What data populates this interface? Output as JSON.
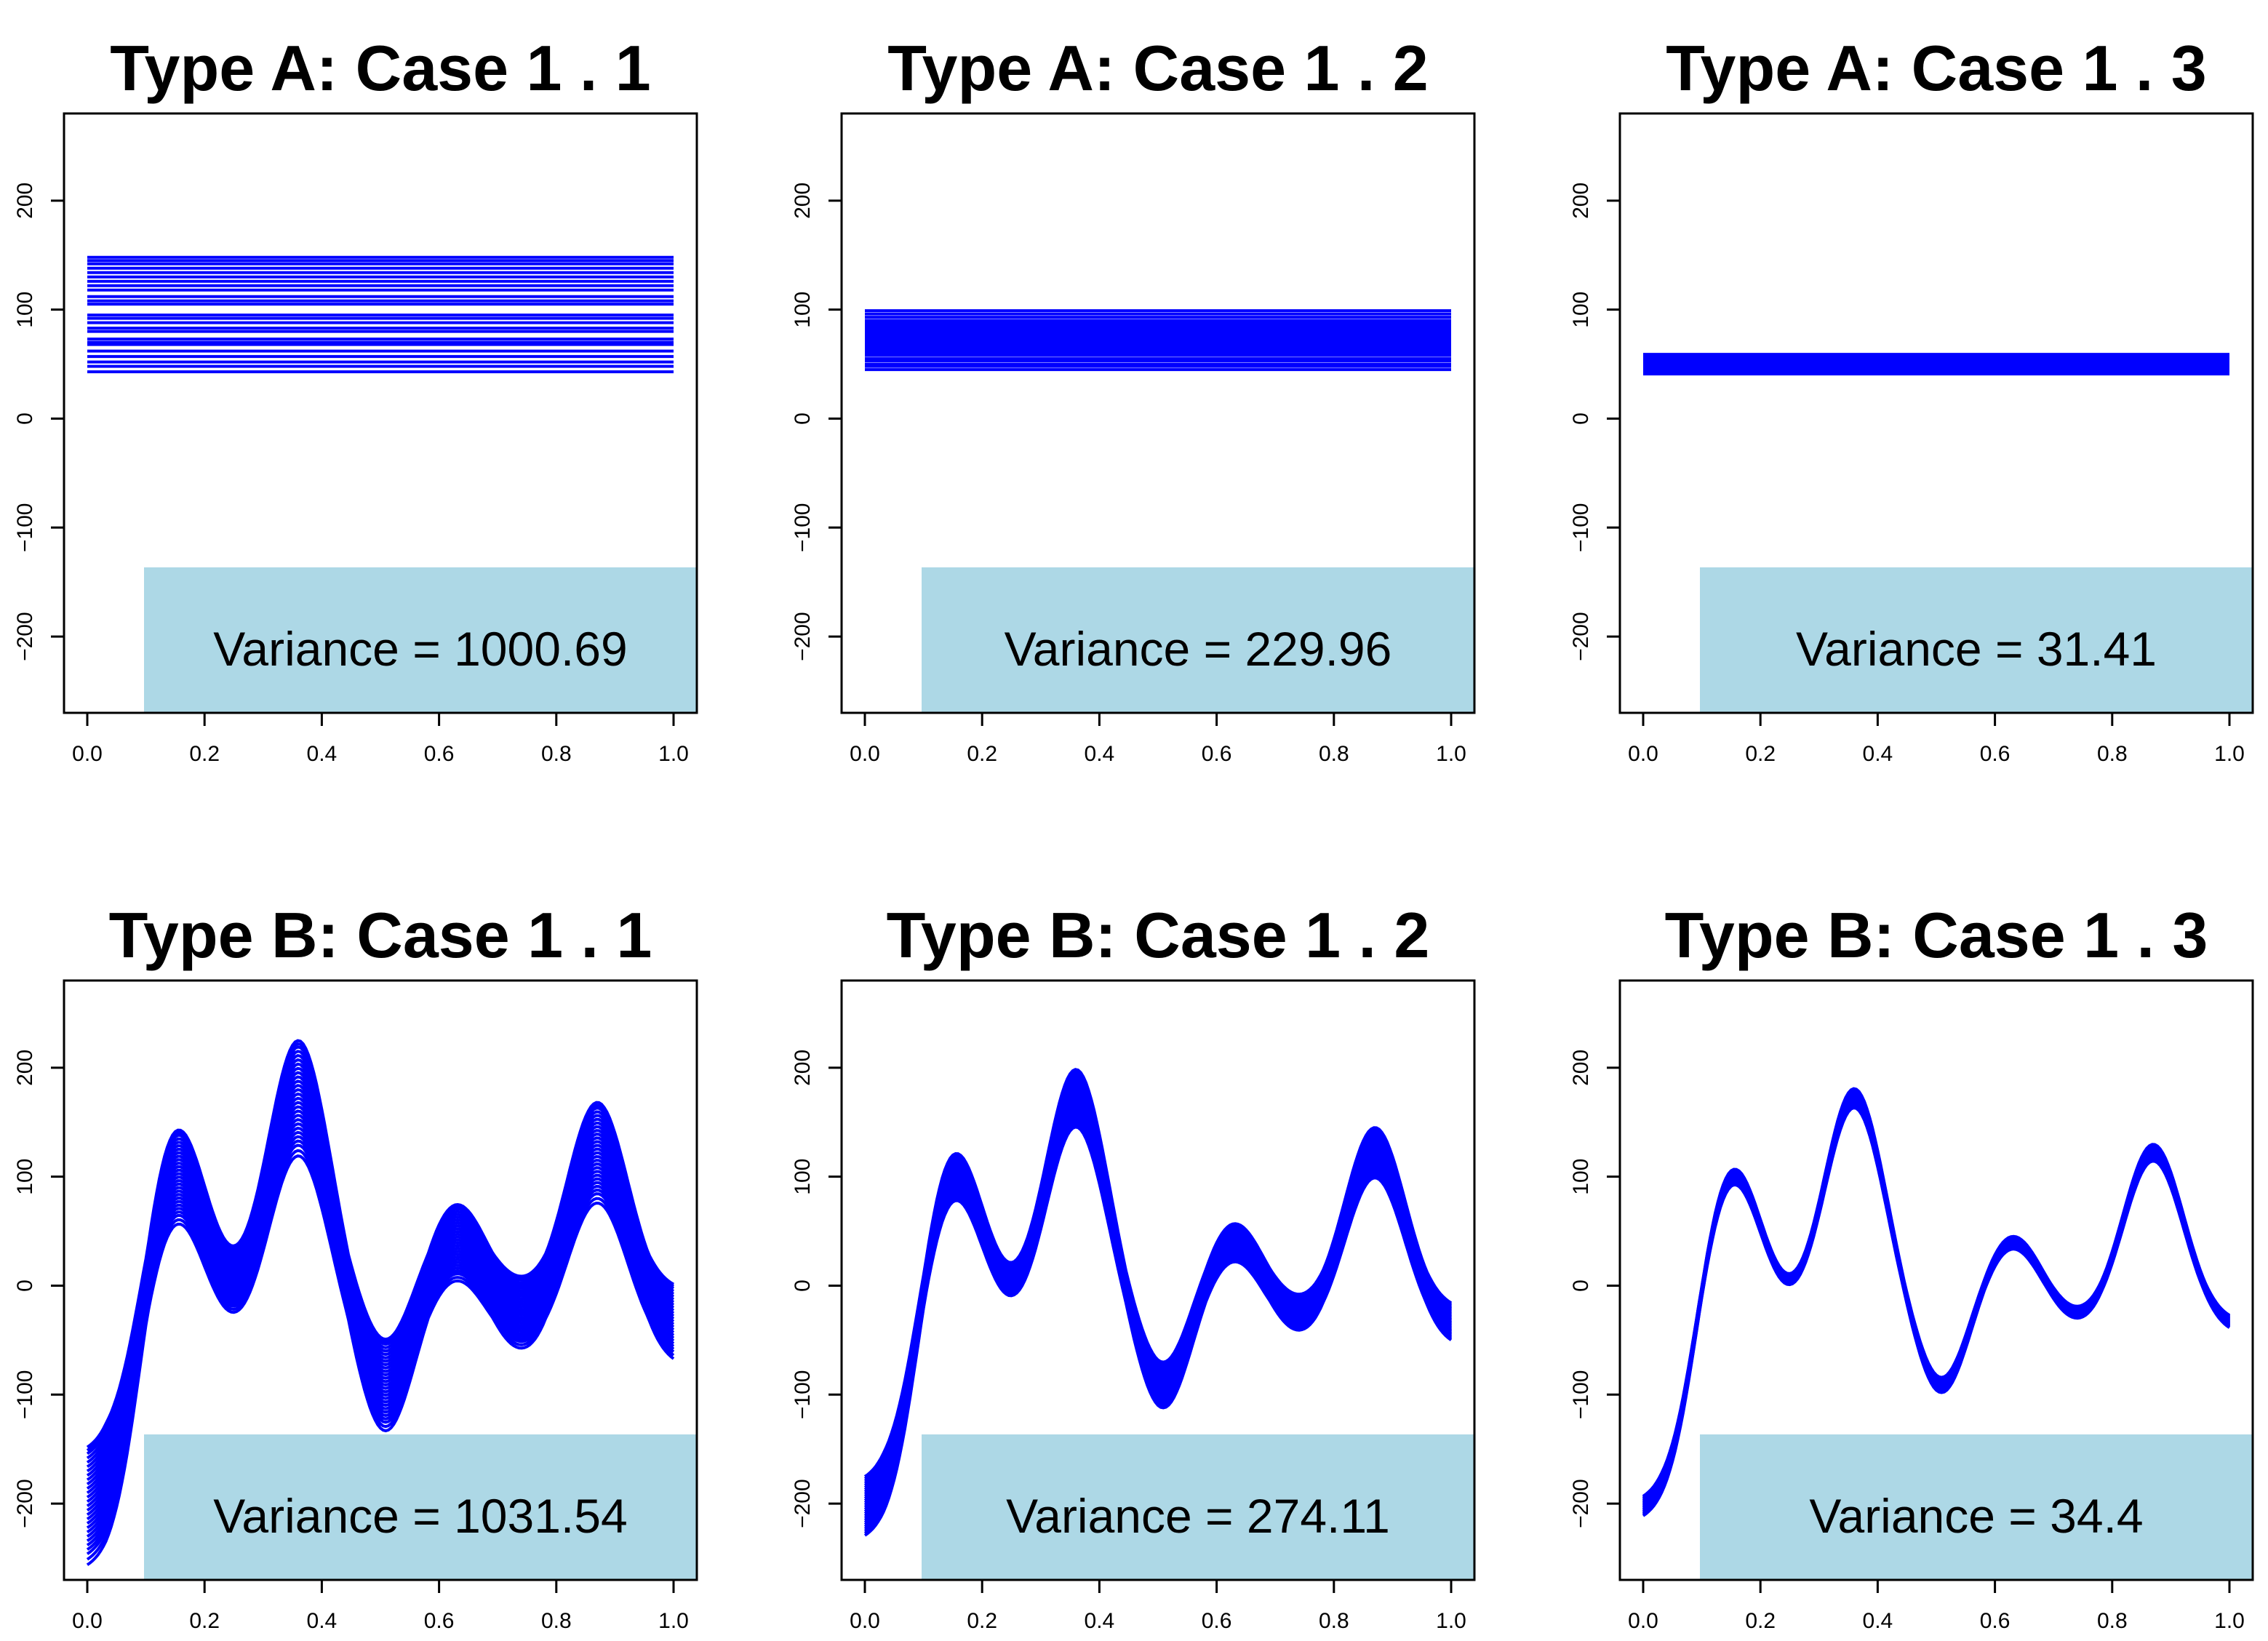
{
  "colors": {
    "curve": "#0000ff",
    "box": "#add8e6",
    "axis": "#000000"
  },
  "chart_data": [
    {
      "type": "line",
      "title": "Type A: Case 1 . 1",
      "shape": "constant",
      "xlim": [
        0,
        1
      ],
      "ylim": [
        -270,
        280
      ],
      "x_ticks": [
        0.0,
        0.2,
        0.4,
        0.6,
        0.8,
        1.0
      ],
      "x_tick_labels": [
        "0.0",
        "0.2",
        "0.4",
        "0.6",
        "0.8",
        "1.0"
      ],
      "y_ticks": [
        -200,
        -100,
        0,
        100,
        200
      ],
      "y_tick_labels": [
        "−200",
        "−100",
        "0",
        "100",
        "200"
      ],
      "series_levels": [
        43,
        48,
        52,
        57,
        62,
        68,
        70,
        73,
        80,
        83,
        88,
        92,
        95,
        105,
        108,
        112,
        118,
        122,
        126,
        130,
        134,
        138,
        142,
        145,
        148
      ],
      "annotation": "Variance = 1000.69"
    },
    {
      "type": "line",
      "title": "Type A: Case 1 . 2",
      "shape": "constant",
      "xlim": [
        0,
        1
      ],
      "ylim": [
        -270,
        280
      ],
      "x_ticks": [
        0.0,
        0.2,
        0.4,
        0.6,
        0.8,
        1.0
      ],
      "x_tick_labels": [
        "0.0",
        "0.2",
        "0.4",
        "0.6",
        "0.8",
        "1.0"
      ],
      "y_ticks": [
        -200,
        -100,
        0,
        100,
        200
      ],
      "y_tick_labels": [
        "−200",
        "−100",
        "0",
        "100",
        "200"
      ],
      "series_levels": [
        45,
        48,
        50,
        53,
        55,
        58,
        60,
        62,
        64,
        66,
        68,
        70,
        72,
        74,
        76,
        78,
        80,
        82,
        84,
        86,
        88,
        90,
        93,
        96,
        99
      ],
      "annotation": "Variance = 229.96"
    },
    {
      "type": "line",
      "title": "Type A: Case 1 . 3",
      "shape": "constant",
      "xlim": [
        0,
        1
      ],
      "ylim": [
        -270,
        280
      ],
      "x_ticks": [
        0.0,
        0.2,
        0.4,
        0.6,
        0.8,
        1.0
      ],
      "x_tick_labels": [
        "0.0",
        "0.2",
        "0.4",
        "0.6",
        "0.8",
        "1.0"
      ],
      "y_ticks": [
        -200,
        -100,
        0,
        100,
        200
      ],
      "y_tick_labels": [
        "−200",
        "−100",
        "0",
        "100",
        "200"
      ],
      "series_levels": [
        41,
        42,
        43,
        44,
        45,
        46,
        47,
        48,
        49,
        50,
        51,
        52,
        53,
        54,
        55,
        56,
        57,
        58,
        59
      ],
      "annotation": "Variance = 31.41"
    },
    {
      "type": "line",
      "title": "Type B: Case 1 . 1",
      "shape": "wave",
      "xlim": [
        0,
        1
      ],
      "ylim": [
        -270,
        280
      ],
      "x_ticks": [
        0.0,
        0.2,
        0.4,
        0.6,
        0.8,
        1.0
      ],
      "x_tick_labels": [
        "0.0",
        "0.2",
        "0.4",
        "0.6",
        "0.8",
        "1.0"
      ],
      "y_ticks": [
        -200,
        -100,
        0,
        100,
        200
      ],
      "y_tick_labels": [
        "−200",
        "−100",
        "0",
        "100",
        "200"
      ],
      "series_offsets": [
        -54,
        -49,
        -44,
        -40,
        -36,
        -32,
        -28,
        -24,
        -20,
        -16,
        -12,
        -8,
        -4,
        0,
        4,
        8,
        12,
        16,
        20,
        24,
        28,
        32,
        36,
        40,
        44,
        48,
        51,
        54
      ],
      "annotation": "Variance = 1031.54"
    },
    {
      "type": "line",
      "title": "Type B: Case 1 . 2",
      "shape": "wave",
      "xlim": [
        0,
        1
      ],
      "ylim": [
        -270,
        280
      ],
      "x_ticks": [
        0.0,
        0.2,
        0.4,
        0.6,
        0.8,
        1.0
      ],
      "x_tick_labels": [
        "0.0",
        "0.2",
        "0.4",
        "0.6",
        "0.8",
        "1.0"
      ],
      "y_ticks": [
        -200,
        -100,
        0,
        100,
        200
      ],
      "y_tick_labels": [
        "−200",
        "−100",
        "0",
        "100",
        "200"
      ],
      "series_offsets": [
        -27,
        -25,
        -23,
        -21,
        -19,
        -17,
        -15,
        -13,
        -11,
        -9,
        -7,
        -5,
        -3,
        -1,
        1,
        3,
        5,
        7,
        9,
        11,
        13,
        15,
        17,
        19,
        21,
        23,
        25,
        27
      ],
      "annotation": "Variance = 274.11"
    },
    {
      "type": "line",
      "title": "Type B: Case 1 . 3",
      "shape": "wave",
      "xlim": [
        0,
        1
      ],
      "ylim": [
        -270,
        280
      ],
      "x_ticks": [
        0.0,
        0.2,
        0.4,
        0.6,
        0.8,
        1.0
      ],
      "x_tick_labels": [
        "0.0",
        "0.2",
        "0.4",
        "0.6",
        "0.8",
        "1.0"
      ],
      "y_ticks": [
        -200,
        -100,
        0,
        100,
        200
      ],
      "y_tick_labels": [
        "−200",
        "−100",
        "0",
        "100",
        "200"
      ],
      "series_offsets": [
        -9,
        -8,
        -7,
        -6,
        -5,
        -4,
        -3,
        -2,
        -1,
        0,
        1,
        2,
        3,
        4,
        5,
        6,
        7,
        8,
        9
      ],
      "annotation": "Variance = 34.4"
    }
  ]
}
